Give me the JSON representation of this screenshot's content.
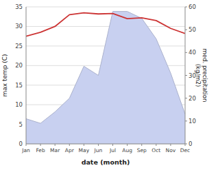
{
  "chart_data": {
    "type": "line",
    "xlabel": "date (month)",
    "ylabel": "max temp (C)",
    "y2label": "med. precipitation\n(kg/m2)",
    "categories": [
      "Jan",
      "Feb",
      "Mar",
      "Apr",
      "May",
      "Jun",
      "Jul",
      "Aug",
      "Sep",
      "Oct",
      "Nov",
      "Dec"
    ],
    "series": [
      {
        "type": "area",
        "color": "#c8d0f0",
        "axis": "y2",
        "values": [
          11,
          9,
          14,
          20,
          34,
          30,
          58,
          58,
          55,
          46,
          31,
          13
        ]
      },
      {
        "type": "line",
        "color": "#cc3333",
        "values": [
          27.5,
          28.5,
          30.0,
          33.0,
          33.5,
          33.2,
          33.3,
          32.0,
          32.2,
          31.5,
          29.5,
          28.2
        ]
      }
    ],
    "ylim": [
      0,
      35
    ],
    "yticks": [
      0,
      5,
      10,
      15,
      20,
      25,
      30,
      35
    ],
    "y2lim": [
      0,
      60
    ],
    "y2ticks": [
      0,
      10,
      20,
      30,
      40,
      50,
      60
    ],
    "grid": true
  }
}
